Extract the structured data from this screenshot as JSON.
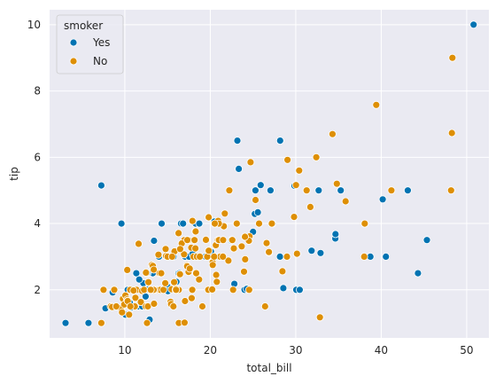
{
  "chart_data": {
    "type": "scatter",
    "xlabel": "total_bill",
    "ylabel": "tip",
    "xlim": [
      1.2,
      52.6
    ],
    "ylim": [
      0.55,
      10.45
    ],
    "xticks": [
      10,
      20,
      30,
      40,
      50
    ],
    "yticks": [
      2,
      4,
      6,
      8,
      10
    ],
    "grid": true,
    "background": "#eaeaf2",
    "legend": {
      "title": "smoker",
      "placement": "top-left"
    },
    "series": [
      {
        "name": "Yes",
        "color": "#0173b2",
        "points": [
          [
            3.07,
            1.0
          ],
          [
            5.75,
            1.0
          ],
          [
            7.25,
            5.15
          ],
          [
            7.74,
            1.44
          ],
          [
            8.58,
            1.92
          ],
          [
            9.6,
            4.0
          ],
          [
            10.07,
            1.25
          ],
          [
            10.34,
            2.0
          ],
          [
            10.59,
            1.61
          ],
          [
            10.77,
            1.47
          ],
          [
            11.02,
            1.98
          ],
          [
            11.35,
            2.5
          ],
          [
            11.59,
            1.5
          ],
          [
            12.03,
            1.5
          ],
          [
            12.16,
            2.2
          ],
          [
            12.43,
            1.8
          ],
          [
            12.6,
            1.0
          ],
          [
            12.74,
            2.01
          ],
          [
            12.9,
            1.1
          ],
          [
            13.0,
            2.0
          ],
          [
            13.27,
            2.5
          ],
          [
            13.42,
            3.48
          ],
          [
            14.0,
            3.0
          ],
          [
            14.15,
            2.0
          ],
          [
            14.31,
            4.0
          ],
          [
            14.52,
            2.0
          ],
          [
            15.01,
            2.09
          ],
          [
            15.36,
            1.64
          ],
          [
            15.69,
            3.0
          ],
          [
            16.0,
            2.0
          ],
          [
            16.04,
            2.24
          ],
          [
            16.27,
            2.5
          ],
          [
            16.4,
            2.5
          ],
          [
            16.47,
            3.23
          ],
          [
            16.58,
            4.0
          ],
          [
            16.66,
            3.4
          ],
          [
            16.82,
            4.0
          ],
          [
            17.07,
            3.0
          ],
          [
            17.47,
            3.5
          ],
          [
            17.51,
            3.0
          ],
          [
            17.92,
            3.08
          ],
          [
            18.24,
            3.76
          ],
          [
            18.28,
            4.0
          ],
          [
            18.35,
            2.5
          ],
          [
            18.71,
            4.0
          ],
          [
            19.44,
            3.0
          ],
          [
            19.81,
            4.19
          ],
          [
            20.08,
            3.15
          ],
          [
            20.45,
            3.0
          ],
          [
            20.49,
            4.06
          ],
          [
            20.53,
            4.0
          ],
          [
            20.76,
            2.24
          ],
          [
            21.01,
            3.0
          ],
          [
            22.12,
            2.88
          ],
          [
            22.42,
            3.48
          ],
          [
            22.49,
            3.5
          ],
          [
            23.33,
            5.65
          ],
          [
            23.1,
            4.0
          ],
          [
            23.17,
            6.5
          ],
          [
            24.01,
            2.0
          ],
          [
            24.06,
            3.6
          ],
          [
            24.52,
            3.48
          ],
          [
            25.21,
            4.29
          ],
          [
            25.28,
            5.0
          ],
          [
            25.56,
            4.34
          ],
          [
            25.89,
            5.16
          ],
          [
            26.86,
            3.14
          ],
          [
            26.59,
            3.41
          ],
          [
            27.28,
            4.0
          ],
          [
            27.05,
            5.0
          ],
          [
            28.15,
            3.0
          ],
          [
            28.17,
            6.5
          ],
          [
            28.44,
            2.56
          ],
          [
            28.55,
            2.05
          ],
          [
            28.97,
            3.0
          ],
          [
            29.85,
            5.14
          ],
          [
            30.06,
            2.0
          ],
          [
            30.46,
            2.0
          ],
          [
            31.27,
            5.0
          ],
          [
            31.85,
            3.18
          ],
          [
            32.68,
            5.0
          ],
          [
            32.83,
            1.17
          ],
          [
            32.9,
            3.11
          ],
          [
            34.63,
            3.55
          ],
          [
            34.65,
            3.68
          ],
          [
            35.26,
            5.0
          ],
          [
            38.07,
            4.0
          ],
          [
            38.73,
            3.0
          ],
          [
            40.17,
            4.73
          ],
          [
            40.55,
            3.0
          ],
          [
            43.11,
            5.0
          ],
          [
            44.3,
            2.5
          ],
          [
            45.35,
            3.5
          ],
          [
            50.81,
            10.0
          ],
          [
            13.03,
            2.0
          ],
          [
            11.69,
            2.31
          ],
          [
            14.73,
            2.2
          ],
          [
            15.04,
            1.96
          ],
          [
            16.93,
            3.07
          ],
          [
            22.82,
            2.18
          ],
          [
            24.27,
            2.03
          ],
          [
            12.66,
            2.5
          ],
          [
            13.13,
            2.0
          ],
          [
            25.0,
            3.75
          ]
        ]
      },
      {
        "name": "No",
        "color": "#de8f05",
        "points": [
          [
            7.25,
            1.0
          ],
          [
            7.51,
            2.0
          ],
          [
            8.35,
            1.5
          ],
          [
            8.52,
            1.48
          ],
          [
            8.77,
            2.0
          ],
          [
            9.55,
            1.45
          ],
          [
            9.68,
            1.32
          ],
          [
            9.78,
            1.73
          ],
          [
            9.94,
            1.56
          ],
          [
            10.07,
            1.83
          ],
          [
            10.27,
            1.71
          ],
          [
            10.33,
            1.67
          ],
          [
            10.34,
            1.66
          ],
          [
            10.51,
            1.25
          ],
          [
            10.63,
            2.0
          ],
          [
            11.17,
            1.5
          ],
          [
            11.24,
            1.76
          ],
          [
            11.38,
            2.0
          ],
          [
            11.87,
            1.63
          ],
          [
            12.02,
            1.97
          ],
          [
            12.26,
            2.0
          ],
          [
            12.46,
            1.5
          ],
          [
            12.54,
            2.5
          ],
          [
            12.69,
            1.5
          ],
          [
            12.76,
            2.23
          ],
          [
            13.0,
            2.0
          ],
          [
            13.16,
            2.75
          ],
          [
            13.28,
            2.72
          ],
          [
            13.39,
            2.61
          ],
          [
            13.42,
            1.58
          ],
          [
            13.81,
            2.0
          ],
          [
            13.94,
            3.06
          ],
          [
            14.07,
            2.5
          ],
          [
            14.26,
            2.5
          ],
          [
            14.48,
            2.0
          ],
          [
            14.78,
            3.23
          ],
          [
            14.83,
            3.02
          ],
          [
            15.06,
            3.0
          ],
          [
            15.36,
            1.64
          ],
          [
            15.42,
            1.57
          ],
          [
            15.48,
            2.02
          ],
          [
            15.77,
            2.23
          ],
          [
            15.81,
            3.16
          ],
          [
            15.95,
            2.0
          ],
          [
            16.21,
            2.0
          ],
          [
            16.29,
            3.71
          ],
          [
            16.31,
            2.0
          ],
          [
            16.32,
            1.0
          ],
          [
            16.45,
            2.47
          ],
          [
            16.93,
            3.07
          ],
          [
            16.97,
            3.5
          ],
          [
            16.99,
            1.01
          ],
          [
            17.26,
            2.74
          ],
          [
            17.29,
            2.71
          ],
          [
            17.46,
            2.54
          ],
          [
            17.59,
            2.64
          ],
          [
            17.78,
            3.27
          ],
          [
            17.82,
            1.75
          ],
          [
            17.89,
            2.0
          ],
          [
            17.92,
            4.08
          ],
          [
            18.04,
            3.0
          ],
          [
            18.26,
            3.25
          ],
          [
            18.29,
            3.76
          ],
          [
            18.43,
            3.0
          ],
          [
            18.69,
            2.31
          ],
          [
            18.78,
            3.0
          ],
          [
            19.08,
            1.5
          ],
          [
            19.49,
            3.51
          ],
          [
            19.65,
            3.0
          ],
          [
            19.77,
            2.0
          ],
          [
            19.82,
            3.18
          ],
          [
            20.23,
            2.01
          ],
          [
            20.27,
            2.83
          ],
          [
            20.29,
            2.75
          ],
          [
            20.65,
            3.35
          ],
          [
            20.69,
            2.45
          ],
          [
            20.9,
            3.5
          ],
          [
            21.01,
            3.5
          ],
          [
            21.16,
            3.0
          ],
          [
            21.5,
            3.5
          ],
          [
            21.58,
            3.92
          ],
          [
            21.7,
            4.3
          ],
          [
            22.23,
            5.0
          ],
          [
            22.67,
            2.0
          ],
          [
            22.75,
            3.25
          ],
          [
            23.68,
            3.31
          ],
          [
            23.95,
            2.55
          ],
          [
            24.08,
            2.92
          ],
          [
            24.55,
            2.0
          ],
          [
            24.59,
            3.61
          ],
          [
            24.71,
            5.85
          ],
          [
            25.29,
            4.71
          ],
          [
            25.71,
            4.0
          ],
          [
            26.41,
            1.5
          ],
          [
            26.88,
            3.12
          ],
          [
            27.2,
            4.0
          ],
          [
            28.97,
            3.0
          ],
          [
            29.03,
            5.92
          ],
          [
            29.8,
            4.2
          ],
          [
            30.14,
            3.09
          ],
          [
            30.4,
            5.6
          ],
          [
            31.71,
            4.5
          ],
          [
            32.4,
            6.0
          ],
          [
            34.3,
            6.7
          ],
          [
            34.81,
            5.2
          ],
          [
            35.83,
            4.67
          ],
          [
            38.01,
            3.0
          ],
          [
            39.42,
            7.58
          ],
          [
            41.19,
            5.0
          ],
          [
            48.17,
            5.0
          ],
          [
            48.27,
            6.73
          ],
          [
            48.33,
            9.0
          ],
          [
            20.92,
            4.08
          ],
          [
            15.98,
            2.03
          ],
          [
            14.15,
            2.0
          ],
          [
            16.66,
            3.4
          ],
          [
            9.0,
            1.5
          ],
          [
            13.51,
            2.0
          ],
          [
            11.61,
            3.39
          ],
          [
            12.48,
            2.52
          ],
          [
            13.37,
            2.0
          ],
          [
            18.35,
            2.5
          ],
          [
            15.69,
            1.5
          ],
          [
            20.76,
            2.24
          ],
          [
            30.03,
            5.16
          ],
          [
            19.81,
            4.19
          ],
          [
            28.44,
            2.56
          ],
          [
            17.47,
            3.5
          ],
          [
            21.0,
            4.0
          ],
          [
            14.52,
            2.0
          ],
          [
            15.0,
            3.0
          ],
          [
            16.0,
            2.0
          ],
          [
            10.29,
            2.6
          ],
          [
            16.47,
            3.23
          ],
          [
            24.52,
            3.48
          ],
          [
            17.31,
            3.5
          ],
          [
            12.6,
            1.0
          ],
          [
            15.53,
            3.0
          ],
          [
            26.59,
            3.41
          ],
          [
            38.07,
            4.0
          ],
          [
            23.1,
            4.0
          ],
          [
            11.02,
            1.98
          ],
          [
            13.03,
            2.0
          ],
          [
            18.15,
            3.5
          ],
          [
            20.53,
            4.0
          ],
          [
            31.27,
            5.0
          ],
          [
            14.73,
            2.2
          ],
          [
            10.65,
            1.5
          ],
          [
            22.12,
            2.88
          ],
          [
            26.86,
            3.14
          ],
          [
            21.48,
            3.0
          ],
          [
            22.58,
            3.5
          ],
          [
            24.06,
            3.6
          ],
          [
            17.04,
            1.66
          ],
          [
            32.83,
            1.17
          ],
          [
            19.82,
            3.18
          ],
          [
            20.45,
            3.0
          ]
        ]
      }
    ]
  }
}
